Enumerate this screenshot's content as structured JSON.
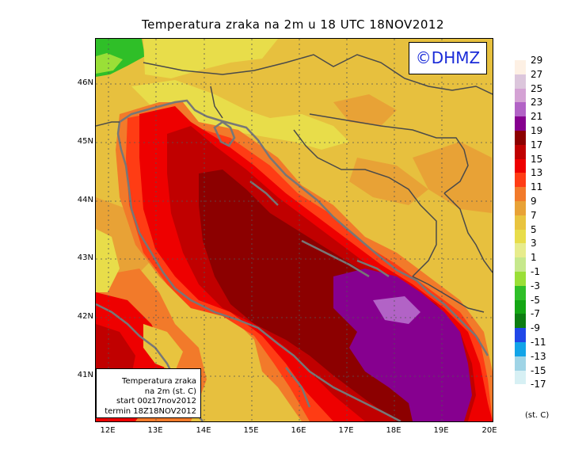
{
  "title": "Temperatura zraka na 2m u 18 UTC 18NOV2012",
  "watermark": "©DHMZ",
  "info": {
    "line1": "Temperatura zraka",
    "line2": "na 2m (st. C)",
    "line3": "start 00z17nov2012",
    "line4": "termin 18Z18NOV2012"
  },
  "lat_labels": [
    "46N",
    "45N",
    "44N",
    "43N",
    "42N",
    "41N"
  ],
  "lon_labels": [
    "12E",
    "13E",
    "14E",
    "15E",
    "16E",
    "17E",
    "18E",
    "19E",
    "20E"
  ],
  "legend": {
    "units": "(st. C)",
    "items": [
      {
        "label": "29",
        "color": "#fdf0e4"
      },
      {
        "label": "27",
        "color": "#dcc6dc"
      },
      {
        "label": "25",
        "color": "#d4a2d4"
      },
      {
        "label": "23",
        "color": "#b263c6"
      },
      {
        "label": "21",
        "color": "#86008f"
      },
      {
        "label": "19",
        "color": "#8c0000"
      },
      {
        "label": "17",
        "color": "#c00000"
      },
      {
        "label": "15",
        "color": "#ee0000"
      },
      {
        "label": "13",
        "color": "#ff3c14"
      },
      {
        "label": "11",
        "color": "#f27a2a"
      },
      {
        "label": "9",
        "color": "#e8a236"
      },
      {
        "label": "7",
        "color": "#e9c43f"
      },
      {
        "label": "5",
        "color": "#e8dd4a"
      },
      {
        "label": "3",
        "color": "#e7ec8c"
      },
      {
        "label": "1",
        "color": "#c6e88c"
      },
      {
        "label": "-1",
        "color": "#9adf37"
      },
      {
        "label": "-3",
        "color": "#2fbf28"
      },
      {
        "label": "-5",
        "color": "#14a614"
      },
      {
        "label": "-7",
        "color": "#0d7d12"
      },
      {
        "label": "-9",
        "color": "#2047e8"
      },
      {
        "label": "-11",
        "color": "#12a4e8"
      },
      {
        "label": "-13",
        "color": "#9fd4e6"
      },
      {
        "label": "-15",
        "color": "#d7f0f4"
      },
      {
        "label": "-17",
        "color": "#ffffff"
      }
    ]
  }
}
